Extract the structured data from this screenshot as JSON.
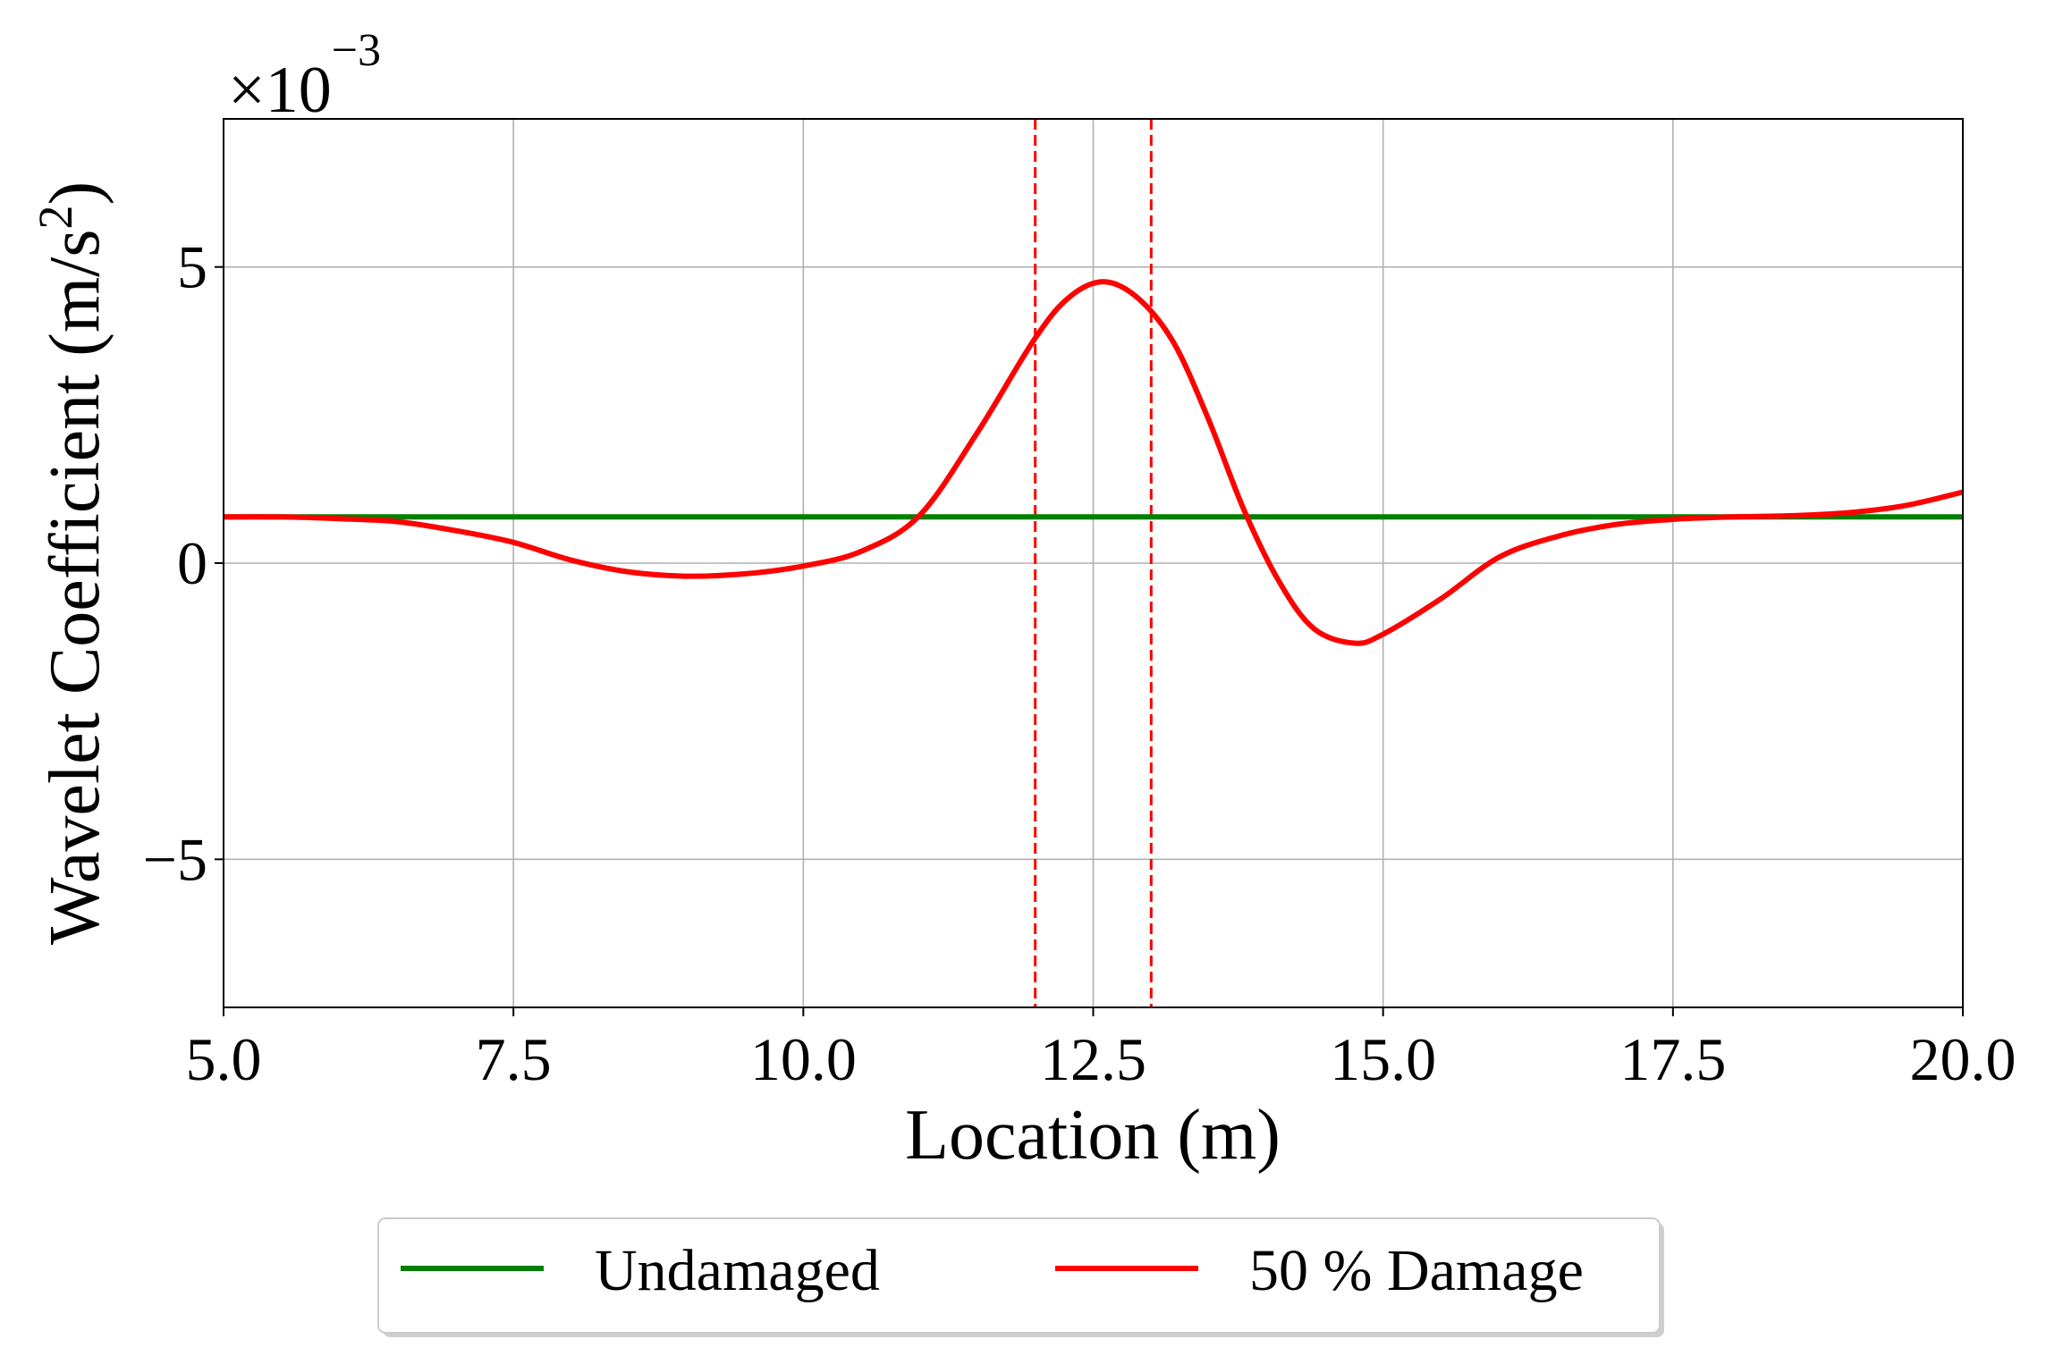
{
  "chart_data": {
    "type": "line",
    "xlabel": "Location (m)",
    "ylabel_main": "Wavelet Coefficient (m/s",
    "ylabel_sup": "2",
    "ylabel_close": ")",
    "offset_times": "×10",
    "offset_exp": "−3",
    "xlim": [
      5.0,
      20.0
    ],
    "ylim": [
      -7.5,
      7.5
    ],
    "xticks": [
      5.0,
      7.5,
      10.0,
      12.5,
      15.0,
      17.5,
      20.0
    ],
    "xtick_labels": [
      "5.0",
      "7.5",
      "10.0",
      "12.5",
      "15.0",
      "17.5",
      "20.0"
    ],
    "yticks": [
      -5,
      0,
      5
    ],
    "ytick_labels": [
      "−5",
      "0",
      "5"
    ],
    "grid": true,
    "damage_region_lines": [
      12.0,
      13.0
    ],
    "series": [
      {
        "name": "Undamaged",
        "color": "#008000",
        "x": [
          5.0,
          20.0
        ],
        "y": [
          0.78,
          0.78
        ]
      },
      {
        "name": "50 % Damage",
        "color": "#ff0000",
        "x": [
          5.0,
          5.5,
          6.0,
          6.5,
          7.0,
          7.5,
          8.0,
          8.5,
          9.0,
          9.5,
          10.0,
          10.5,
          11.0,
          11.5,
          12.0,
          12.3,
          12.6,
          12.9,
          13.2,
          13.5,
          13.8,
          14.1,
          14.4,
          14.75,
          15.0,
          15.5,
          16.0,
          16.5,
          17.0,
          17.5,
          18.0,
          18.5,
          19.0,
          19.5,
          20.0
        ],
        "y": [
          0.78,
          0.78,
          0.75,
          0.7,
          0.55,
          0.35,
          0.05,
          -0.15,
          -0.22,
          -0.18,
          -0.05,
          0.2,
          0.8,
          2.2,
          3.8,
          4.5,
          4.75,
          4.45,
          3.7,
          2.4,
          0.9,
          -0.3,
          -1.1,
          -1.35,
          -1.2,
          -0.6,
          0.1,
          0.45,
          0.65,
          0.74,
          0.78,
          0.8,
          0.85,
          0.97,
          1.2
        ]
      }
    ],
    "legend": {
      "placement": "bottom-center",
      "entries": [
        "Undamaged",
        "50 % Damage"
      ]
    }
  }
}
